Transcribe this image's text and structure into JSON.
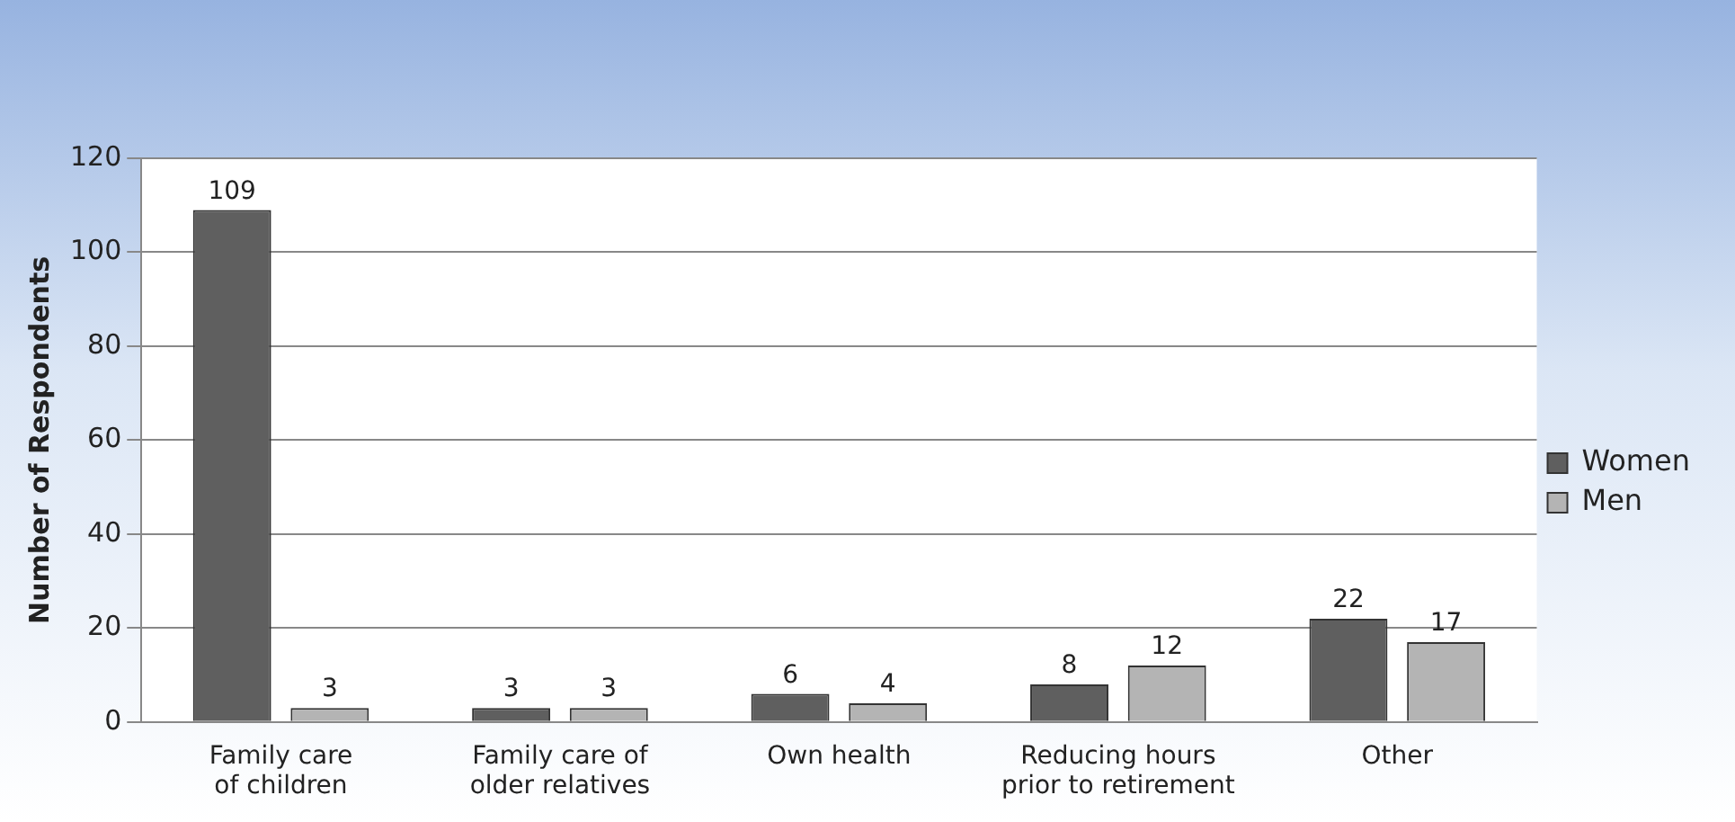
{
  "chart_data": {
    "type": "bar",
    "ylabel": "Number of Respondents",
    "categories": [
      "Family care of children",
      "Family care of older relatives",
      "Own health",
      "Reducing hours prior to retirement",
      "Other"
    ],
    "series": [
      {
        "name": "Women",
        "color": "#5f5f5f",
        "values": [
          109,
          3,
          6,
          8,
          22
        ]
      },
      {
        "name": "Men",
        "color": "#b4b4b4",
        "values": [
          3,
          3,
          4,
          12,
          17
        ]
      }
    ],
    "ylim": [
      0,
      120
    ],
    "yticks": [
      0,
      20,
      40,
      60,
      80,
      100,
      120
    ],
    "grid": "y",
    "legend": "right",
    "data_labels": true
  }
}
